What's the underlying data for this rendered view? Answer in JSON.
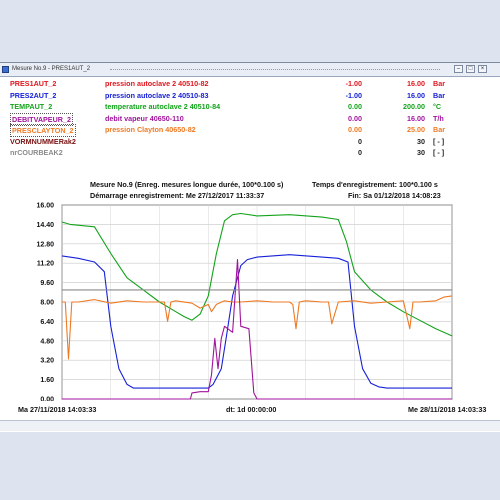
{
  "window": {
    "title": "Mesure No.9 - PRES1AUT_2"
  },
  "legend": [
    {
      "name": "PRES1AUT_2",
      "desc": "pression autoclave 2 40510-82",
      "min": "-1.00",
      "max": "16.00",
      "unit": "Bar",
      "color": "#e0161d",
      "boxed": false
    },
    {
      "name": "PRES2AUT_2",
      "desc": "pression autoclave 2 40510-83",
      "min": "-1.00",
      "max": "16.00",
      "unit": "Bar",
      "color": "#1520d8",
      "boxed": false
    },
    {
      "name": "TEMPAUT_2",
      "desc": "temperature autoclave 2 40510-84",
      "min": "0.00",
      "max": "200.00",
      "unit": "°C",
      "color": "#13a31a",
      "boxed": false
    },
    {
      "name": "DEBITVAPEUR_2",
      "desc": "debit vapeur 40650-110",
      "min": "0.00",
      "max": "16.00",
      "unit": "T/h",
      "color": "#a0139c",
      "boxed": true
    },
    {
      "name": "PRESCLAYTON_2",
      "desc": "pression Clayton 40650-82",
      "min": "0.00",
      "max": "25.00",
      "unit": "Bar",
      "color": "#ee7a24",
      "boxed": true
    },
    {
      "name": "VORMNUMMERak2",
      "desc": "",
      "min": "0",
      "max": "30",
      "unit": "[ - ]",
      "color": "#7a1010",
      "boxed": false
    },
    {
      "name": "nrCOURBEAK2",
      "desc": "",
      "min": "0",
      "max": "30",
      "unit": "[ - ]",
      "color": "#8a8a8a",
      "boxed": false
    }
  ],
  "chart_header": {
    "measure": "Mesure No.9 (Enreg. mesures longue durée, 100*0.100 s)",
    "record_time": "Temps d'enregistrement: 100*0.100 s",
    "start": "Démarrage enregistrement: Me 27/12/2017 11:33:37",
    "end": "Fin: Sa 01/12/2018 14:08:23"
  },
  "footer": {
    "left": "Ma 27/11/2018 14:03:33",
    "center": "dt: 1d 00:00:00",
    "right": "Me 28/11/2018 14:03:33"
  },
  "chart_data": {
    "type": "line",
    "ylim": [
      0,
      16
    ],
    "y_ticks": [
      "0.00",
      "1.60",
      "3.20",
      "4.80",
      "6.40",
      "8.00",
      "9.60",
      "11.20",
      "12.80",
      "14.40",
      "16.00"
    ],
    "x_range": [
      "Ma 27/11/2018 14:03:33",
      "Me 28/11/2018 14:03:33"
    ],
    "x_hours": [
      0,
      24
    ],
    "grid": true,
    "series": [
      {
        "name": "PRES2AUT_2",
        "color": "#1520d8",
        "x": [
          0,
          1,
          2,
          2.6,
          3,
          3.5,
          4,
          4.4,
          5,
          6,
          7,
          8,
          9,
          9.3,
          9.8,
          10.1,
          10.5,
          11,
          11.4,
          12,
          14,
          16,
          17,
          17.6,
          18,
          18.5,
          19,
          19.5,
          20,
          21,
          22,
          23,
          24
        ],
        "y": [
          11.8,
          11.6,
          11.3,
          10.5,
          6,
          2.5,
          1.2,
          0.9,
          0.9,
          0.9,
          0.9,
          0.9,
          0.9,
          1.2,
          2.5,
          5,
          8.5,
          11,
          11.5,
          11.7,
          11.9,
          11.7,
          11.6,
          11.3,
          6,
          2.5,
          1.3,
          1.0,
          0.9,
          0.9,
          0.9,
          0.9,
          0.9
        ]
      },
      {
        "name": "TEMPAUT_2",
        "color": "#13a31a",
        "x": [
          0,
          0.5,
          2,
          3,
          4,
          5,
          6,
          7,
          7.5,
          8,
          8.5,
          9,
          9.5,
          10,
          10.5,
          11,
          12,
          14,
          16,
          17,
          17.5,
          18,
          19,
          20,
          21,
          22,
          23,
          24
        ],
        "y": [
          14.6,
          14.4,
          14.2,
          12,
          10,
          9,
          8,
          7.2,
          6.8,
          6.5,
          7,
          8.5,
          12,
          14.7,
          15.2,
          15.3,
          15.1,
          15.2,
          15.0,
          14.8,
          13,
          10.5,
          9,
          8,
          7.2,
          6.5,
          5.8,
          5.2
        ]
      },
      {
        "name": "PRESCLAYTON_2",
        "color": "#ee7a24",
        "x": [
          0,
          0.2,
          0.4,
          0.6,
          1,
          2,
          3,
          4,
          5,
          6,
          6.3,
          6.5,
          6.7,
          7,
          8,
          8.5,
          9,
          9.2,
          9.5,
          10,
          10.5,
          11,
          12,
          13,
          14,
          14.2,
          14.4,
          14.6,
          15,
          16,
          16.4,
          16.6,
          17,
          18,
          19,
          20,
          21,
          21.4,
          21.6,
          22,
          23,
          23.5,
          24
        ],
        "y": [
          8.0,
          8.0,
          3.3,
          8.0,
          8.0,
          8.2,
          7.9,
          8.1,
          8.0,
          8.0,
          8.0,
          6.4,
          8.0,
          8.1,
          7.9,
          7.5,
          7.8,
          7.2,
          7.8,
          8.1,
          8.0,
          8.0,
          8.1,
          8.0,
          8.0,
          7.8,
          5.8,
          8.0,
          8.1,
          8.0,
          8.0,
          6.2,
          8.0,
          8.1,
          7.9,
          8.0,
          8.1,
          5.8,
          8.0,
          8.0,
          8.1,
          8.4,
          8.5
        ]
      },
      {
        "name": "DEBITVAPEUR_2",
        "color": "#a0139c",
        "x": [
          0,
          7.9,
          8.0,
          8.5,
          9.0,
          9.2,
          9.4,
          9.6,
          9.8,
          10.0,
          10.5,
          10.8,
          11.0,
          11.5,
          11.8,
          12.0,
          24
        ],
        "y": [
          0,
          0,
          0.5,
          0.6,
          0.6,
          2.0,
          5.0,
          2.5,
          5.0,
          6.0,
          5.5,
          11.5,
          6.0,
          5.8,
          0.5,
          0,
          0
        ]
      },
      {
        "name": "nrCOURBEAK2",
        "color": "#8a8a8a",
        "x": [
          0,
          24
        ],
        "y": [
          9.0,
          9.0
        ]
      }
    ]
  }
}
